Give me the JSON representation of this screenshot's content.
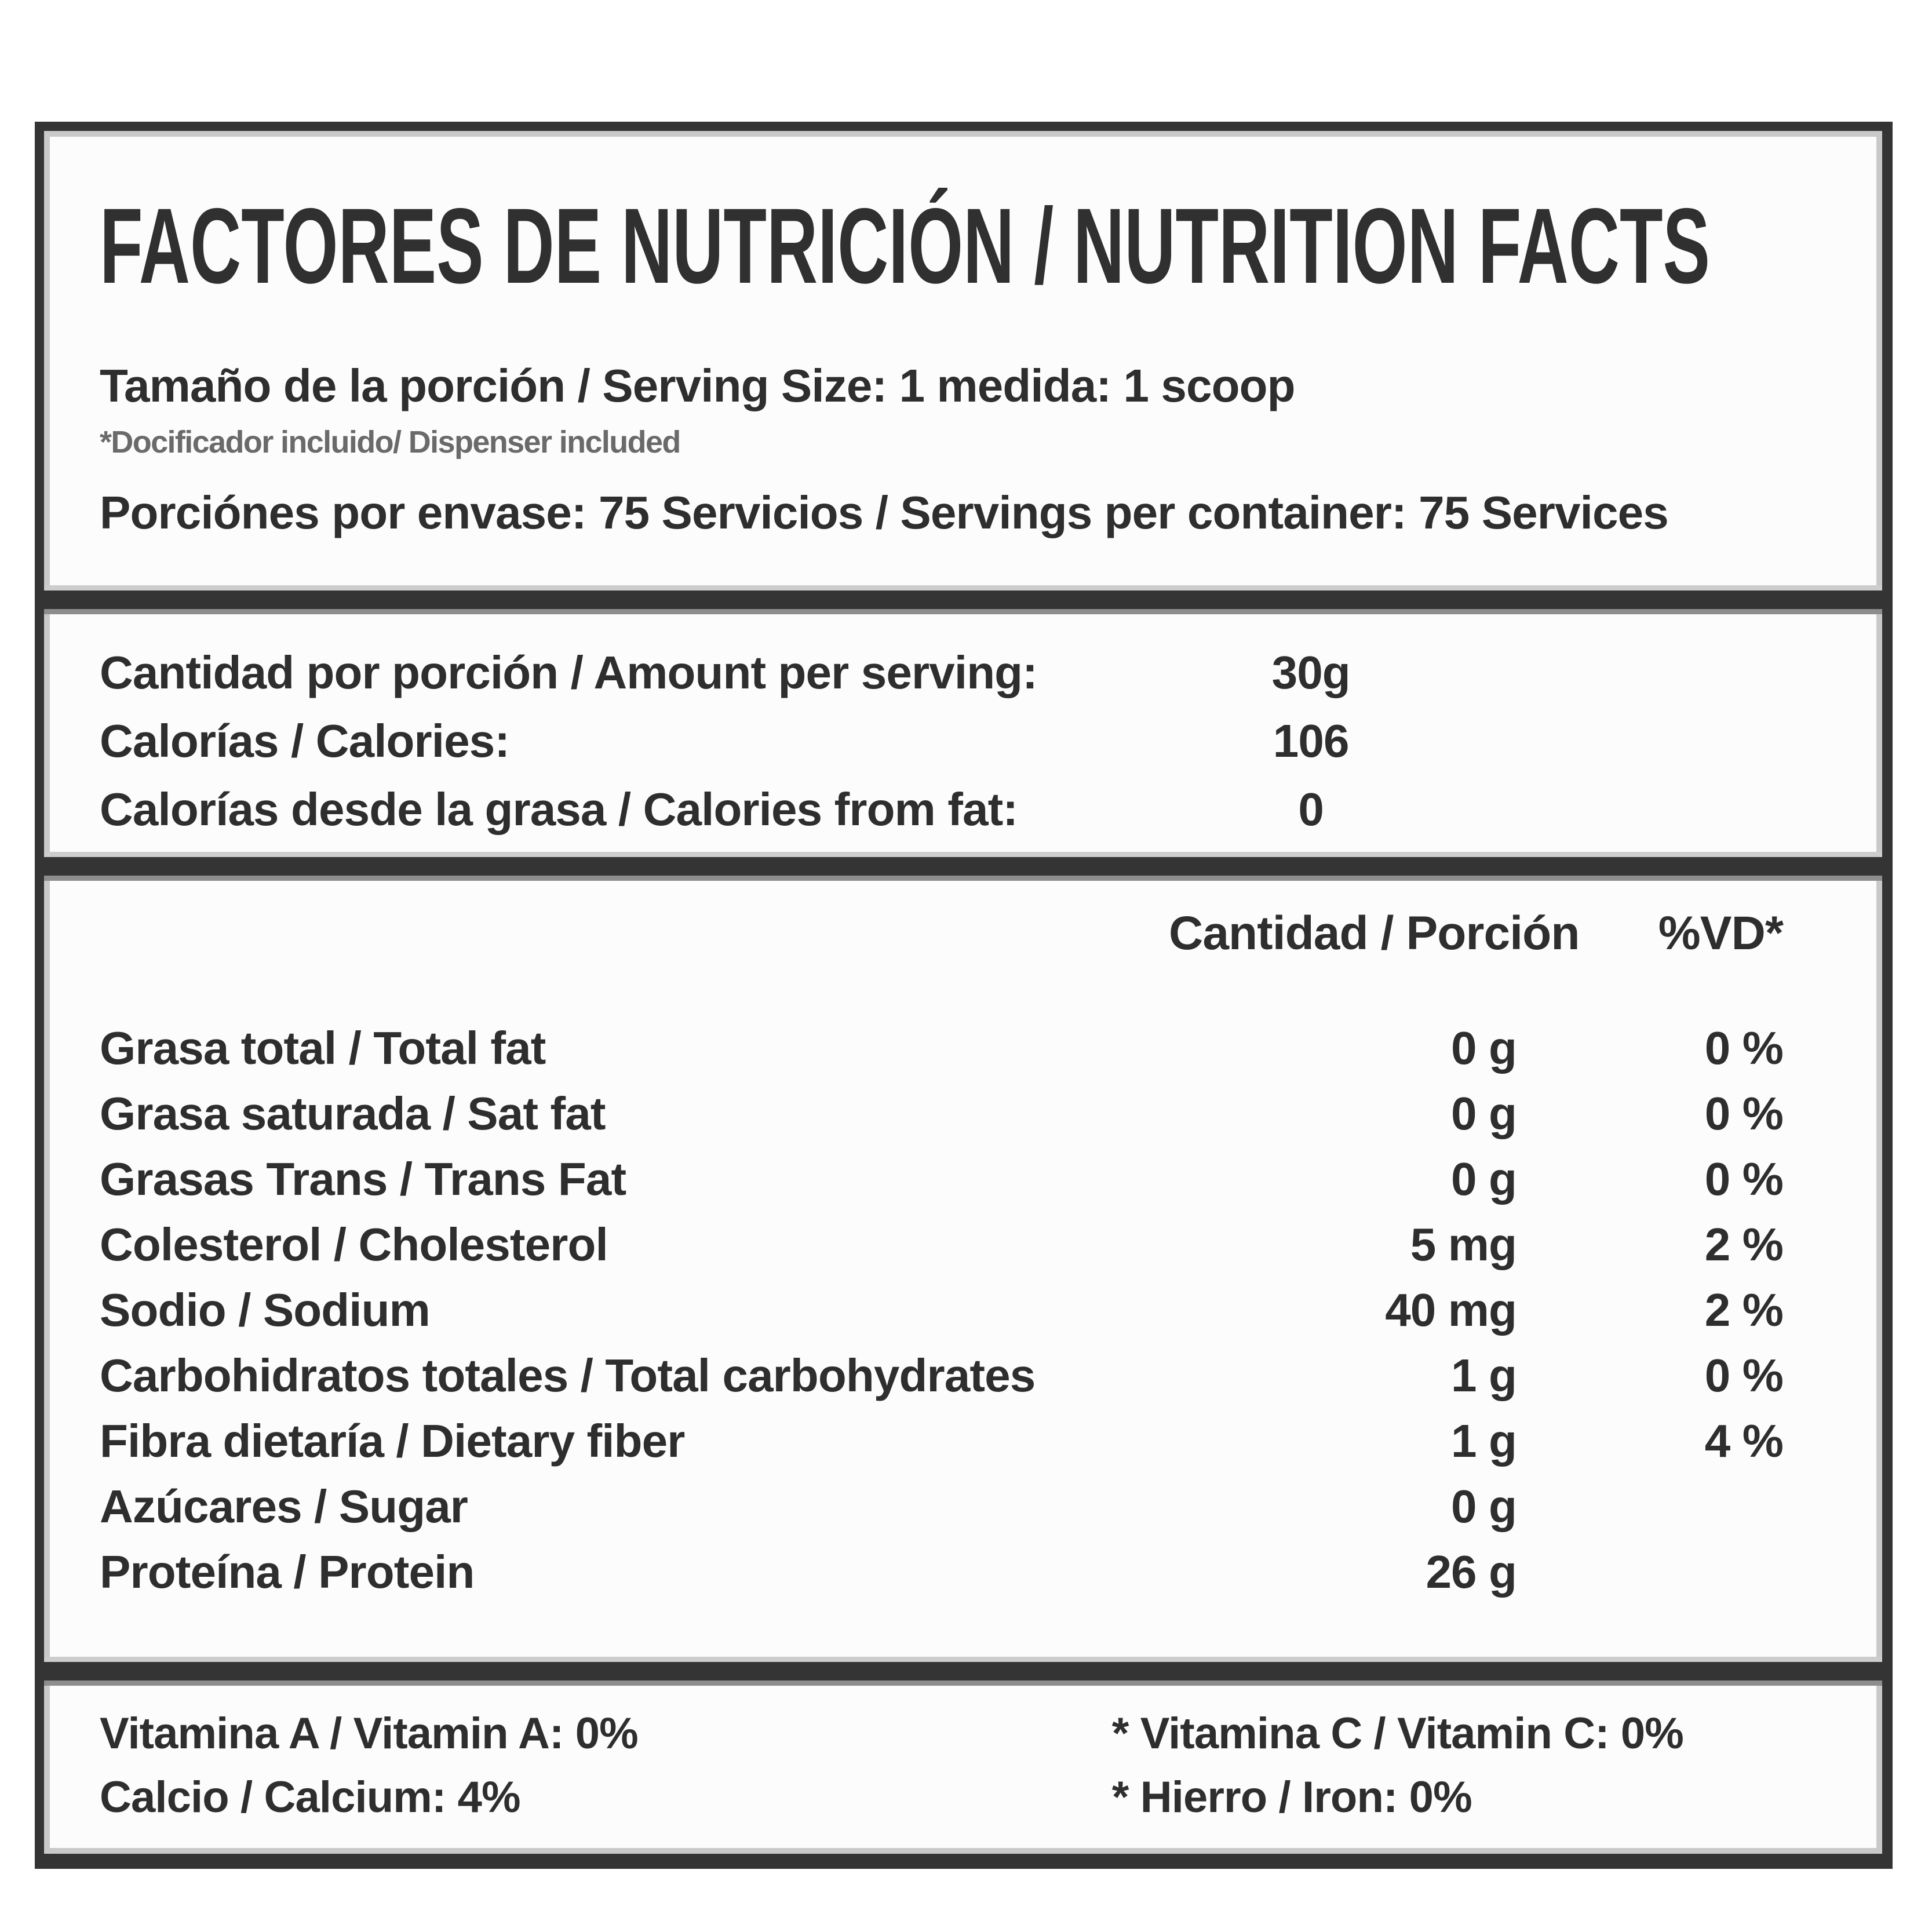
{
  "title": "FACTORES DE NUTRICIÓN / NUTRITION FACTS",
  "serving": {
    "size_line": "Tamaño de la porción / Serving Size: 1 medida: 1 scoop",
    "dispenser_note": "*Docificador incluido/ Dispenser included",
    "servings_line": "Porciónes por envase: 75 Servicios / Servings per container: 75 Services"
  },
  "per_serving": {
    "rows": [
      {
        "label": "Cantidad por porción / Amount per serving:",
        "value": "30g"
      },
      {
        "label": "Calorías / Calories:",
        "value": "106"
      },
      {
        "label": "Calorías desde la grasa / Calories from fat:",
        "value": "0"
      }
    ]
  },
  "nutrients": {
    "amount_header": "Cantidad / Porción",
    "dv_header": "%VD*",
    "rows": [
      {
        "name": "Grasa total / Total fat",
        "amount": "0 g",
        "dv": "0 %"
      },
      {
        "name": "Grasa saturada / Sat fat",
        "amount": "0 g",
        "dv": "0 %"
      },
      {
        "name": "Grasas Trans / Trans Fat",
        "amount": "0 g",
        "dv": "0 %"
      },
      {
        "name": "Colesterol / Cholesterol",
        "amount": "5 mg",
        "dv": "2 %"
      },
      {
        "name": "Sodio / Sodium",
        "amount": "40 mg",
        "dv": "2 %"
      },
      {
        "name": "Carbohidratos totales / Total carbohydrates",
        "amount": "1 g",
        "dv": "0 %"
      },
      {
        "name": "Fibra dietaría / Dietary fiber",
        "amount": "1 g",
        "dv": "4 %"
      },
      {
        "name": "Azúcares / Sugar",
        "amount": "0 g",
        "dv": ""
      },
      {
        "name": "Proteína / Protein",
        "amount": "26 g",
        "dv": ""
      }
    ]
  },
  "vitamins": {
    "rows": [
      {
        "left": "Vitamina A / Vitamin A: 0%",
        "right": "* Vitamina C / Vitamin C: 0%"
      },
      {
        "left": "Calcio / Calcium: 4%",
        "right": "* Hierro / Iron: 0%"
      }
    ]
  },
  "colors": {
    "border": "#343434",
    "text": "#2e2e2e",
    "note_text": "#6a6a6a",
    "divider_highlight": "#cdcdcd",
    "divider_shadow": "#8d8d8d",
    "label_background": "#fcfcfc"
  }
}
